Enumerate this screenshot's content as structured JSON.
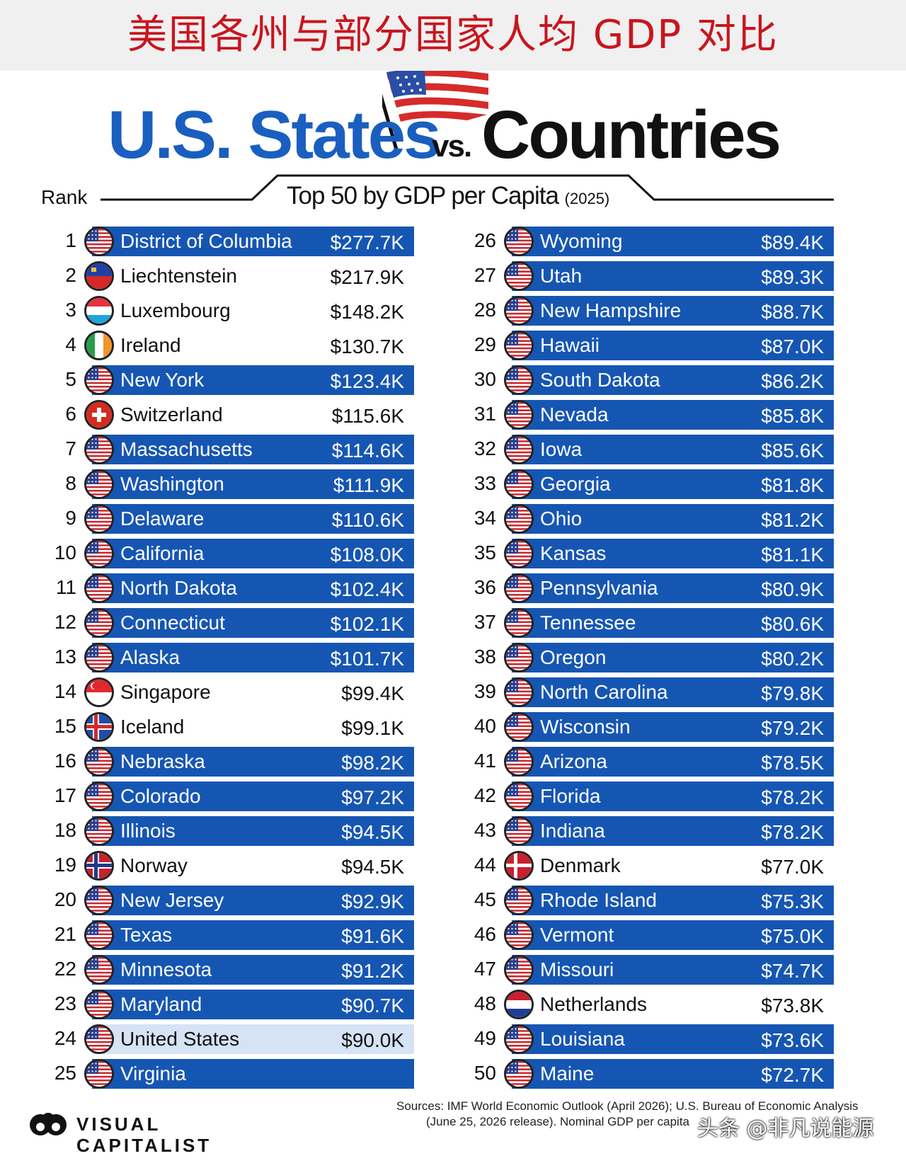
{
  "banner": {
    "title": "美国各州与部分国家人均 GDP 对比"
  },
  "chart_data": {
    "type": "table",
    "title": {
      "part1": "U.S. States",
      "vs": "vs.",
      "part2": "Countries"
    },
    "subtitle": "Top 50 by GDP per Capita",
    "subtitle_year": "(2025)",
    "rank_header": "Rank",
    "legend_colors": {
      "state": "#1656b3",
      "country": "#ffffff",
      "united_states": "#d5e3f4"
    },
    "left": [
      {
        "rank": "1",
        "name": "District of Columbia",
        "value": "$277.7K",
        "kind": "state",
        "flag": "us-flag"
      },
      {
        "rank": "2",
        "name": "Liechtenstein",
        "value": "$217.9K",
        "kind": "country",
        "flag": "liechtenstein-flag"
      },
      {
        "rank": "3",
        "name": "Luxembourg",
        "value": "$148.2K",
        "kind": "country",
        "flag": "luxembourg-flag"
      },
      {
        "rank": "4",
        "name": "Ireland",
        "value": "$130.7K",
        "kind": "country",
        "flag": "ireland-flag"
      },
      {
        "rank": "5",
        "name": "New York",
        "value": "$123.4K",
        "kind": "state",
        "flag": "us-flag"
      },
      {
        "rank": "6",
        "name": "Switzerland",
        "value": "$115.6K",
        "kind": "country",
        "flag": "switzerland-flag"
      },
      {
        "rank": "7",
        "name": "Massachusetts",
        "value": "$114.6K",
        "kind": "state",
        "flag": "us-flag"
      },
      {
        "rank": "8",
        "name": "Washington",
        "value": "$111.9K",
        "kind": "state",
        "flag": "us-flag"
      },
      {
        "rank": "9",
        "name": "Delaware",
        "value": "$110.6K",
        "kind": "state",
        "flag": "us-flag"
      },
      {
        "rank": "10",
        "name": "California",
        "value": "$108.0K",
        "kind": "state",
        "flag": "us-flag"
      },
      {
        "rank": "11",
        "name": "North Dakota",
        "value": "$102.4K",
        "kind": "state",
        "flag": "us-flag"
      },
      {
        "rank": "12",
        "name": "Connecticut",
        "value": "$102.1K",
        "kind": "state",
        "flag": "us-flag"
      },
      {
        "rank": "13",
        "name": "Alaska",
        "value": "$101.7K",
        "kind": "state",
        "flag": "us-flag"
      },
      {
        "rank": "14",
        "name": "Singapore",
        "value": "$99.4K",
        "kind": "country",
        "flag": "singapore-flag"
      },
      {
        "rank": "15",
        "name": "Iceland",
        "value": "$99.1K",
        "kind": "country",
        "flag": "iceland-flag"
      },
      {
        "rank": "16",
        "name": "Nebraska",
        "value": "$98.2K",
        "kind": "state",
        "flag": "us-flag"
      },
      {
        "rank": "17",
        "name": "Colorado",
        "value": "$97.2K",
        "kind": "state",
        "flag": "us-flag"
      },
      {
        "rank": "18",
        "name": "Illinois",
        "value": "$94.5K",
        "kind": "state",
        "flag": "us-flag"
      },
      {
        "rank": "19",
        "name": "Norway",
        "value": "$94.5K",
        "kind": "country",
        "flag": "norway-flag"
      },
      {
        "rank": "20",
        "name": "New Jersey",
        "value": "$92.9K",
        "kind": "state",
        "flag": "us-flag"
      },
      {
        "rank": "21",
        "name": "Texas",
        "value": "$91.6K",
        "kind": "state",
        "flag": "us-flag"
      },
      {
        "rank": "22",
        "name": "Minnesota",
        "value": "$91.2K",
        "kind": "state",
        "flag": "us-flag"
      },
      {
        "rank": "23",
        "name": "Maryland",
        "value": "$90.7K",
        "kind": "state",
        "flag": "us-flag"
      },
      {
        "rank": "24",
        "name": "United States",
        "value": "$90.0K",
        "kind": "us",
        "flag": "us-flag"
      },
      {
        "rank": "25",
        "name": "Virginia",
        "value": "",
        "kind": "state",
        "flag": "us-flag"
      }
    ],
    "right": [
      {
        "rank": "26",
        "name": "Wyoming",
        "value": "$89.4K",
        "kind": "state",
        "flag": "us-flag"
      },
      {
        "rank": "27",
        "name": "Utah",
        "value": "$89.3K",
        "kind": "state",
        "flag": "us-flag"
      },
      {
        "rank": "28",
        "name": "New Hampshire",
        "value": "$88.7K",
        "kind": "state",
        "flag": "us-flag"
      },
      {
        "rank": "29",
        "name": "Hawaii",
        "value": "$87.0K",
        "kind": "state",
        "flag": "us-flag"
      },
      {
        "rank": "30",
        "name": "South Dakota",
        "value": "$86.2K",
        "kind": "state",
        "flag": "us-flag"
      },
      {
        "rank": "31",
        "name": "Nevada",
        "value": "$85.8K",
        "kind": "state",
        "flag": "us-flag"
      },
      {
        "rank": "32",
        "name": "Iowa",
        "value": "$85.6K",
        "kind": "state",
        "flag": "us-flag"
      },
      {
        "rank": "33",
        "name": "Georgia",
        "value": "$81.8K",
        "kind": "state",
        "flag": "us-flag"
      },
      {
        "rank": "34",
        "name": "Ohio",
        "value": "$81.2K",
        "kind": "state",
        "flag": "us-flag"
      },
      {
        "rank": "35",
        "name": "Kansas",
        "value": "$81.1K",
        "kind": "state",
        "flag": "us-flag"
      },
      {
        "rank": "36",
        "name": "Pennsylvania",
        "value": "$80.9K",
        "kind": "state",
        "flag": "us-flag"
      },
      {
        "rank": "37",
        "name": "Tennessee",
        "value": "$80.6K",
        "kind": "state",
        "flag": "us-flag"
      },
      {
        "rank": "38",
        "name": "Oregon",
        "value": "$80.2K",
        "kind": "state",
        "flag": "us-flag"
      },
      {
        "rank": "39",
        "name": "North Carolina",
        "value": "$79.8K",
        "kind": "state",
        "flag": "us-flag"
      },
      {
        "rank": "40",
        "name": "Wisconsin",
        "value": "$79.2K",
        "kind": "state",
        "flag": "us-flag"
      },
      {
        "rank": "41",
        "name": "Arizona",
        "value": "$78.5K",
        "kind": "state",
        "flag": "us-flag"
      },
      {
        "rank": "42",
        "name": "Florida",
        "value": "$78.2K",
        "kind": "state",
        "flag": "us-flag"
      },
      {
        "rank": "43",
        "name": "Indiana",
        "value": "$78.2K",
        "kind": "state",
        "flag": "us-flag"
      },
      {
        "rank": "44",
        "name": "Denmark",
        "value": "$77.0K",
        "kind": "country",
        "flag": "denmark-flag"
      },
      {
        "rank": "45",
        "name": "Rhode Island",
        "value": "$75.3K",
        "kind": "state",
        "flag": "us-flag"
      },
      {
        "rank": "46",
        "name": "Vermont",
        "value": "$75.0K",
        "kind": "state",
        "flag": "us-flag"
      },
      {
        "rank": "47",
        "name": "Missouri",
        "value": "$74.7K",
        "kind": "state",
        "flag": "us-flag"
      },
      {
        "rank": "48",
        "name": "Netherlands",
        "value": "$73.8K",
        "kind": "country",
        "flag": "netherlands-flag"
      },
      {
        "rank": "49",
        "name": "Louisiana",
        "value": "$73.6K",
        "kind": "state",
        "flag": "us-flag"
      },
      {
        "rank": "50",
        "name": "Maine",
        "value": "$72.7K",
        "kind": "state",
        "flag": "us-flag"
      }
    ]
  },
  "footer": {
    "logo": "VISUAL CAPITALIST",
    "sources_line1": "Sources: IMF World Economic Outlook (April 2026); U.S. Bureau of Economic Analysis",
    "sources_line2": "(June 25, 2026 release). Nominal GDP per capita",
    "watermark": "头条 @非凡说能源"
  }
}
